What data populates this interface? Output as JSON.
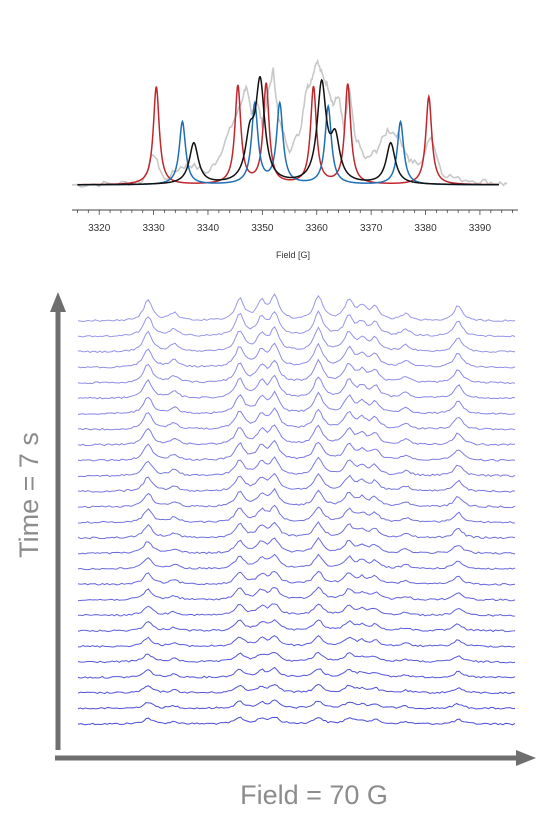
{
  "chart_data": [
    {
      "type": "line",
      "title": "",
      "xlabel": "Field [G]",
      "ylabel": "",
      "xlim": [
        3315,
        3397
      ],
      "xticks": [
        3320,
        3330,
        3340,
        3350,
        3360,
        3370,
        3380,
        3390
      ],
      "grid": false,
      "legend": "none",
      "series": [
        {
          "color": "#c8c8c8",
          "values": [
            [
              3315,
              0.0
            ],
            [
              3320,
              0.01
            ],
            [
              3325,
              0.02
            ],
            [
              3328,
              0.04
            ],
            [
              3330,
              0.32
            ],
            [
              3332,
              0.05
            ],
            [
              3335,
              0.18
            ],
            [
              3337,
              0.2
            ],
            [
              3340,
              0.12
            ],
            [
              3342,
              0.28
            ],
            [
              3344,
              0.55
            ],
            [
              3346,
              0.8
            ],
            [
              3347,
              1.0
            ],
            [
              3348,
              0.7
            ],
            [
              3349,
              0.85
            ],
            [
              3350,
              0.6
            ],
            [
              3351,
              0.9
            ],
            [
              3352,
              1.15
            ],
            [
              3353,
              0.65
            ],
            [
              3355,
              0.35
            ],
            [
              3357,
              0.55
            ],
            [
              3358,
              0.95
            ],
            [
              3359,
              1.05
            ],
            [
              3360,
              1.25
            ],
            [
              3361,
              1.1
            ],
            [
              3362,
              1.0
            ],
            [
              3363,
              0.8
            ],
            [
              3364,
              0.9
            ],
            [
              3365,
              0.55
            ],
            [
              3366,
              0.95
            ],
            [
              3367,
              0.5
            ],
            [
              3369,
              0.25
            ],
            [
              3371,
              0.35
            ],
            [
              3373,
              0.55
            ],
            [
              3375,
              0.5
            ],
            [
              3377,
              0.25
            ],
            [
              3379,
              0.2
            ],
            [
              3381,
              0.5
            ],
            [
              3383,
              0.12
            ],
            [
              3386,
              0.06
            ],
            [
              3390,
              0.04
            ],
            [
              3393,
              0.02
            ],
            [
              3395,
              0.01
            ]
          ]
        },
        {
          "color": "#c0272d",
          "peaks": [
            {
              "center": 3330.5,
              "height": 0.98
            },
            {
              "center": 3345.5,
              "height": 0.98
            },
            {
              "center": 3350.7,
              "height": 1.0
            },
            {
              "center": 3359.4,
              "height": 0.97
            },
            {
              "center": 3365.7,
              "height": 1.0
            },
            {
              "center": 3380.6,
              "height": 0.88
            }
          ],
          "width": 0.65
        },
        {
          "color": "#1f6fb5",
          "peaks": [
            {
              "center": 3335.3,
              "height": 0.63
            },
            {
              "center": 3348.6,
              "height": 0.8
            },
            {
              "center": 3353.2,
              "height": 0.8
            },
            {
              "center": 3362.1,
              "height": 0.78
            },
            {
              "center": 3375.4,
              "height": 0.63
            }
          ],
          "width": 0.7
        },
        {
          "color": "#111111",
          "peaks": [
            {
              "center": 3337.4,
              "height": 0.41
            },
            {
              "center": 3347.7,
              "height": 0.41
            },
            {
              "center": 3349.6,
              "height": 0.98
            },
            {
              "center": 3360.9,
              "height": 0.98
            },
            {
              "center": 3363.4,
              "height": 0.41
            },
            {
              "center": 3373.6,
              "height": 0.41
            }
          ],
          "width": 1.0
        }
      ]
    },
    {
      "type": "line",
      "title": "",
      "xlabel": "Field = 70 G",
      "ylabel": "Time = 7 s",
      "grid": false,
      "legend": "none",
      "traces": 27,
      "color": "#4b4bd6",
      "peak_positions": [
        0.16,
        0.22,
        0.37,
        0.42,
        0.45,
        0.55,
        0.62,
        0.65,
        0.68,
        0.75,
        0.87
      ]
    }
  ]
}
